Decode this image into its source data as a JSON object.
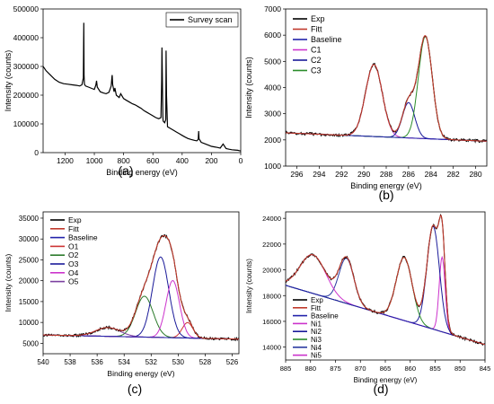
{
  "figure": {
    "panels": [
      {
        "id": "a",
        "caption": "(a)",
        "chart_data": {
          "type": "line",
          "title": "",
          "xlabel": "Binding energy (eV)",
          "ylabel": "Intensity (counts)",
          "xlim": [
            1350,
            0
          ],
          "ylim": [
            0,
            500000
          ],
          "xticks": [
            1200,
            1000,
            800,
            600,
            400,
            200,
            0
          ],
          "yticks": [
            0,
            100000,
            200000,
            300000,
            400000,
            500000
          ],
          "legend_position": "top-right",
          "series": [
            {
              "name": "Survey scan",
              "color": "#000000",
              "x": [
                1350,
                1330,
                1300,
                1270,
                1240,
                1210,
                1180,
                1150,
                1120,
                1100,
                1085,
                1075,
                1072,
                1070,
                1068,
                1060,
                1040,
                1010,
                1000,
                990,
                985,
                980,
                960,
                940,
                920,
                900,
                885,
                880,
                878,
                875,
                865,
                860,
                850,
                830,
                820,
                800,
                780,
                760,
                740,
                720,
                700,
                680,
                660,
                640,
                620,
                600,
                580,
                560,
                545,
                540,
                538,
                535,
                532,
                530,
                520,
                512,
                510,
                507,
                500,
                480,
                460,
                440,
                420,
                400,
                380,
                360,
                340,
                320,
                300,
                290,
                287,
                285,
                270,
                240,
                220,
                200,
                180,
                160,
                140,
                120,
                100,
                80,
                60,
                40,
                20,
                10,
                0
              ],
              "y": [
                300000,
                285000,
                270000,
                255000,
                245000,
                240000,
                238000,
                236000,
                234000,
                232000,
                236000,
                260000,
                452000,
                270000,
                238000,
                232000,
                228000,
                222000,
                220000,
                235000,
                250000,
                228000,
                212000,
                208000,
                205000,
                210000,
                232000,
                262000,
                270000,
                238000,
                212000,
                225000,
                200000,
                192000,
                205000,
                188000,
                182000,
                176000,
                170000,
                166000,
                160000,
                154000,
                146000,
                140000,
                134000,
                128000,
                122000,
                118000,
                122000,
                250000,
                366000,
                255000,
                128000,
                110000,
                104000,
                115000,
                355000,
                200000,
                90000,
                84000,
                78000,
                72000,
                66000,
                60000,
                54000,
                49000,
                46000,
                43000,
                41000,
                46000,
                75000,
                48000,
                36000,
                30000,
                26000,
                22000,
                20000,
                18000,
                16000,
                30000,
                14000,
                12000,
                10000,
                9000,
                8000,
                7000,
                6000
              ]
            }
          ]
        }
      },
      {
        "id": "b",
        "caption": "(b)",
        "chart_data": {
          "type": "line",
          "title": "",
          "xlabel": "Binding energy (eV)",
          "ylabel": "Intensity (counts)",
          "xlim": [
            297,
            279
          ],
          "ylim": [
            1000,
            7000
          ],
          "xticks": [
            296,
            294,
            292,
            290,
            288,
            286,
            284,
            282,
            280
          ],
          "yticks": [
            1000,
            2000,
            3000,
            4000,
            5000,
            6000,
            7000
          ],
          "legend_position": "top-left",
          "baseline": {
            "x0": 297,
            "y0": 2270,
            "x1": 279,
            "y1": 1950
          },
          "components": [
            {
              "name": "C1",
              "color": "#cc33cc",
              "center": 289.1,
              "amplitude": 2750,
              "sigma": 0.75
            },
            {
              "name": "C2",
              "color": "#1a1a99",
              "center": 286.0,
              "amplitude": 1350,
              "sigma": 0.55
            },
            {
              "name": "C3",
              "color": "#2a8c2a",
              "center": 284.5,
              "amplitude": 3900,
              "sigma": 0.62
            }
          ],
          "series": [
            {
              "name": "Exp",
              "color": "#000000",
              "role": "exp"
            },
            {
              "name": "Fitt",
              "color": "#c0392b",
              "role": "fit"
            },
            {
              "name": "Baseline",
              "color": "#2222aa",
              "role": "baseline"
            },
            {
              "name": "C1",
              "color": "#cc33cc",
              "role": "component"
            },
            {
              "name": "C2",
              "color": "#1a1a99",
              "role": "component"
            },
            {
              "name": "C3",
              "color": "#2a8c2a",
              "role": "component"
            }
          ]
        }
      },
      {
        "id": "c",
        "caption": "(c)",
        "chart_data": {
          "type": "line",
          "title": "",
          "xlabel": "Binding energy (eV)",
          "ylabel": "Intensity (counts)",
          "xlim": [
            540,
            525.5
          ],
          "ylim": [
            2500,
            36500
          ],
          "xticks": [
            540,
            538,
            536,
            534,
            532,
            530,
            528,
            526
          ],
          "yticks": [
            5000,
            10000,
            15000,
            20000,
            25000,
            30000,
            35000
          ],
          "legend_position": "top-left",
          "baseline": {
            "x0": 540,
            "y0": 7000,
            "x1": 525.5,
            "y1": 6000
          },
          "components": [
            {
              "name": "O1",
              "color": "#cc3333",
              "center": 529.3,
              "amplitude": 3700,
              "sigma": 0.4
            },
            {
              "name": "O2",
              "color": "#2a7a2a",
              "center": 532.5,
              "amplitude": 9800,
              "sigma": 0.65
            },
            {
              "name": "O3",
              "color": "#1a1a99",
              "center": 531.3,
              "amplitude": 19300,
              "sigma": 0.6
            },
            {
              "name": "O4",
              "color": "#cc33cc",
              "center": 530.4,
              "amplitude": 13700,
              "sigma": 0.5
            },
            {
              "name": "O5",
              "color": "#7b3fa0",
              "center": 535.2,
              "amplitude": 2100,
              "sigma": 0.9
            }
          ],
          "series": [
            {
              "name": "Exp",
              "color": "#000000",
              "role": "exp"
            },
            {
              "name": "Fitt",
              "color": "#c0392b",
              "role": "fit"
            },
            {
              "name": "Baseline",
              "color": "#2222aa",
              "role": "baseline"
            },
            {
              "name": "O1",
              "color": "#cc3333",
              "role": "component"
            },
            {
              "name": "O2",
              "color": "#2a7a2a",
              "role": "component"
            },
            {
              "name": "O3",
              "color": "#1a1a99",
              "role": "component"
            },
            {
              "name": "O4",
              "color": "#cc33cc",
              "role": "component"
            },
            {
              "name": "O5",
              "color": "#7b3fa0",
              "role": "component"
            }
          ]
        }
      },
      {
        "id": "d",
        "caption": "(d)",
        "chart_data": {
          "type": "line",
          "title": "",
          "xlabel": "Binding energy (eV)",
          "ylabel": "Intensity (counts)",
          "xlim": [
            885,
            845
          ],
          "ylim": [
            13000,
            24500
          ],
          "xticks": [
            885,
            880,
            875,
            870,
            865,
            860,
            855,
            850,
            845
          ],
          "yticks": [
            14000,
            16000,
            18000,
            20000,
            22000,
            24000
          ],
          "legend_position": "bottom-left",
          "baseline": {
            "x0": 885,
            "y0": 18800,
            "x1": 845,
            "y1": 14200
          },
          "components": [
            {
              "name": "Ni1",
              "color": "#cc33cc",
              "center": 853.6,
              "amplitude": 5800,
              "sigma": 0.6
            },
            {
              "name": "Ni2",
              "color": "#1a1a99",
              "center": 855.4,
              "amplitude": 8000,
              "sigma": 1.25
            },
            {
              "name": "Ni3",
              "color": "#2a8c2a",
              "center": 861.2,
              "amplitude": 4900,
              "sigma": 1.6
            },
            {
              "name": "Ni4",
              "color": "#2a3aa0",
              "center": 872.8,
              "amplitude": 3500,
              "sigma": 1.5
            },
            {
              "name": "Ni5",
              "color": "#cc33cc",
              "center": 879.5,
              "amplitude": 3000,
              "sigma": 2.6
            }
          ],
          "series": [
            {
              "name": "Exp",
              "color": "#000000",
              "role": "exp"
            },
            {
              "name": "Fitt",
              "color": "#c0392b",
              "role": "fit"
            },
            {
              "name": "Baseline",
              "color": "#2222aa",
              "role": "baseline"
            },
            {
              "name": "Ni1",
              "color": "#cc33cc",
              "role": "component"
            },
            {
              "name": "Ni2",
              "color": "#1a1a99",
              "role": "component"
            },
            {
              "name": "Ni3",
              "color": "#2a8c2a",
              "role": "component"
            },
            {
              "name": "Ni4",
              "color": "#2a3aa0",
              "role": "component"
            },
            {
              "name": "Ni5",
              "color": "#cc33cc",
              "role": "component"
            }
          ]
        }
      }
    ]
  }
}
